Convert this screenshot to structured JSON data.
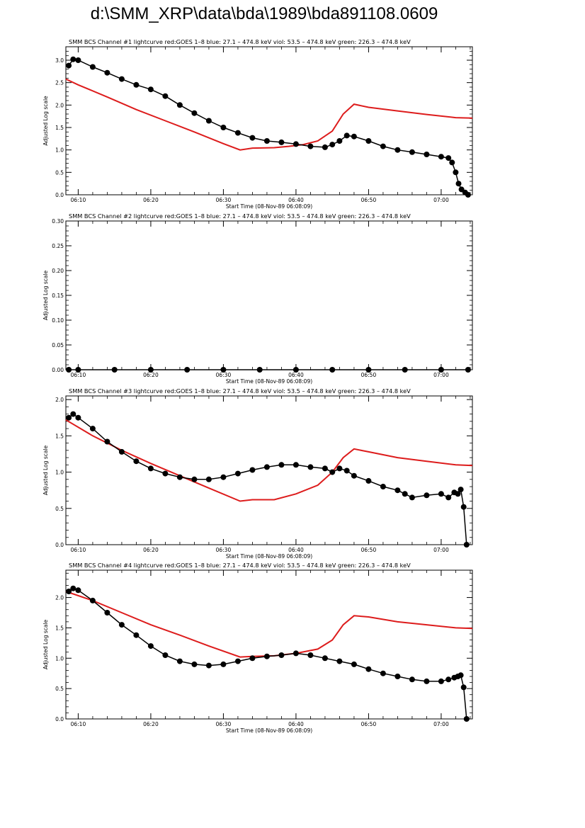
{
  "page": {
    "title": "d:\\SMM_XRP\\data\\bda\\1989\\bda891108.0609"
  },
  "colors": {
    "goes": "#dd1c1c",
    "bcs": "#000000",
    "axis": "#000000"
  },
  "chart_data": [
    {
      "type": "scatter",
      "title": "SMM BCS Channel #1 lightcurve  red:GOES 1–8  blue: 27.1 – 474.8 keV  viol: 53.5 – 474.8 keV  green: 226.3 – 474.8 keV",
      "xlabel": "Start Time (08-Nov-89 06:08:09)",
      "ylabel": "Adjusted Log scale",
      "x_unit": "minutes since 06:00",
      "xlim": [
        8.3,
        64.3
      ],
      "ylim": [
        0,
        3.3
      ],
      "yticks": [
        "0.0",
        "0.5",
        "1.0",
        "1.5",
        "2.0",
        "2.5",
        "3.0"
      ],
      "xticks": [
        "06:10",
        "06:20",
        "06:30",
        "06:40",
        "06:50",
        "07:00"
      ],
      "series": [
        {
          "name": "GOES 1–8",
          "style": "line",
          "color": "#dd1c1c",
          "x": [
            8.3,
            10,
            14,
            18,
            22,
            26,
            30,
            32.3,
            34,
            37,
            39,
            41,
            43,
            45,
            46.5,
            48,
            50,
            54,
            58,
            62,
            64.3
          ],
          "y": [
            2.58,
            2.45,
            2.18,
            1.9,
            1.65,
            1.4,
            1.14,
            1.0,
            1.04,
            1.05,
            1.08,
            1.12,
            1.2,
            1.42,
            1.8,
            2.02,
            1.95,
            1.87,
            1.79,
            1.72,
            1.71
          ]
        },
        {
          "name": "BCS",
          "style": "points-line",
          "color": "#000000",
          "x": [
            8.7,
            9.3,
            10,
            12,
            14,
            16,
            18,
            20,
            22,
            24,
            26,
            28,
            30,
            32,
            34,
            36,
            38,
            40,
            42,
            44,
            45,
            46,
            47,
            48,
            50,
            52,
            54,
            56,
            58,
            60,
            61,
            61.5,
            62,
            62.4,
            62.8,
            63.3,
            63.7
          ],
          "y": [
            2.88,
            3.02,
            3.0,
            2.85,
            2.72,
            2.58,
            2.45,
            2.35,
            2.2,
            2.0,
            1.82,
            1.65,
            1.5,
            1.38,
            1.27,
            1.2,
            1.17,
            1.13,
            1.08,
            1.06,
            1.12,
            1.2,
            1.32,
            1.3,
            1.2,
            1.08,
            1.0,
            0.95,
            0.9,
            0.85,
            0.82,
            0.72,
            0.5,
            0.25,
            0.12,
            0.05,
            0.0
          ]
        }
      ]
    },
    {
      "type": "scatter",
      "title": "SMM BCS Channel #2 lightcurve  red:GOES 1–8  blue: 27.1 – 474.8 keV  viol: 53.5 – 474.8 keV  green: 226.3 – 474.8 keV",
      "xlabel": "Start Time (08-Nov-89 06:08:09)",
      "ylabel": "Adjusted Log scale",
      "x_unit": "minutes since 06:00",
      "xlim": [
        8.3,
        64.3
      ],
      "ylim": [
        0,
        0.3
      ],
      "yticks": [
        "0.00",
        "0.05",
        "0.10",
        "0.15",
        "0.20",
        "0.25",
        "0.30"
      ],
      "xticks": [
        "06:10",
        "06:20",
        "06:30",
        "06:40",
        "06:50",
        "07:00"
      ],
      "series": [
        {
          "name": "BCS",
          "style": "points-line",
          "color": "#000000",
          "x": [
            8.7,
            10,
            15,
            20,
            25,
            30,
            35,
            40,
            45,
            50,
            55,
            60,
            63.7
          ],
          "y": [
            0,
            0,
            0,
            0,
            0,
            0,
            0,
            0,
            0,
            0,
            0,
            0,
            0
          ]
        }
      ]
    },
    {
      "type": "scatter",
      "title": "SMM BCS Channel #3 lightcurve  red:GOES 1–8  blue: 27.1 – 474.8 keV  viol: 53.5 – 474.8 keV  green: 226.3 – 474.8 keV",
      "xlabel": "Start Time (08-Nov-89 06:08:09)",
      "ylabel": "Adjusted Log scale",
      "x_unit": "minutes since 06:00",
      "xlim": [
        8.3,
        64.3
      ],
      "ylim": [
        0,
        2.05
      ],
      "yticks": [
        "0.0",
        "0.5",
        "1.0",
        "1.5",
        "2.0"
      ],
      "xticks": [
        "06:10",
        "06:20",
        "06:30",
        "06:40",
        "06:50",
        "07:00"
      ],
      "series": [
        {
          "name": "GOES 1–8",
          "style": "line",
          "color": "#dd1c1c",
          "x": [
            8.3,
            12,
            16,
            20,
            24,
            28,
            32.3,
            34,
            37,
            40,
            43,
            45,
            46.5,
            48,
            50,
            54,
            58,
            62,
            64.3
          ],
          "y": [
            1.72,
            1.5,
            1.3,
            1.12,
            0.95,
            0.78,
            0.6,
            0.62,
            0.62,
            0.7,
            0.82,
            1.0,
            1.2,
            1.32,
            1.28,
            1.2,
            1.15,
            1.1,
            1.09
          ]
        },
        {
          "name": "BCS",
          "style": "points-line",
          "color": "#000000",
          "x": [
            8.7,
            9.3,
            10,
            12,
            14,
            16,
            18,
            20,
            22,
            24,
            26,
            28,
            30,
            32,
            34,
            36,
            38,
            40,
            42,
            44,
            45,
            46,
            47,
            48,
            50,
            52,
            54,
            55,
            56,
            58,
            60,
            61,
            61.8,
            62.3,
            62.7,
            63.1,
            63.5
          ],
          "y": [
            1.75,
            1.8,
            1.75,
            1.6,
            1.42,
            1.28,
            1.15,
            1.05,
            0.98,
            0.93,
            0.9,
            0.9,
            0.93,
            0.98,
            1.03,
            1.07,
            1.1,
            1.1,
            1.07,
            1.05,
            1.0,
            1.05,
            1.02,
            0.95,
            0.88,
            0.8,
            0.75,
            0.7,
            0.65,
            0.68,
            0.7,
            0.65,
            0.72,
            0.7,
            0.76,
            0.52,
            0.0
          ]
        }
      ]
    },
    {
      "type": "scatter",
      "title": "SMM BCS Channel #4 lightcurve  red:GOES 1–8  blue: 27.1 – 474.8 keV  viol: 53.5 – 474.8 keV  green: 226.3 – 474.8 keV",
      "xlabel": "Start Time (08-Nov-89 06:08:09)",
      "ylabel": "Adjusted Log scale",
      "x_unit": "minutes since 06:00",
      "xlim": [
        8.3,
        64.3
      ],
      "ylim": [
        0,
        2.45
      ],
      "yticks": [
        "0.0",
        "0.5",
        "1.0",
        "1.5",
        "2.0"
      ],
      "xticks": [
        "06:10",
        "06:20",
        "06:30",
        "06:40",
        "06:50",
        "07:00"
      ],
      "series": [
        {
          "name": "GOES 1–8",
          "style": "line",
          "color": "#dd1c1c",
          "x": [
            8.3,
            12,
            16,
            20,
            24,
            28,
            32.3,
            34,
            37,
            40,
            43,
            45,
            46.5,
            48,
            50,
            54,
            58,
            62,
            64.3
          ],
          "y": [
            2.1,
            1.95,
            1.75,
            1.55,
            1.38,
            1.2,
            1.02,
            1.03,
            1.04,
            1.08,
            1.15,
            1.3,
            1.55,
            1.7,
            1.68,
            1.6,
            1.55,
            1.5,
            1.49
          ]
        },
        {
          "name": "BCS",
          "style": "points-line",
          "color": "#000000",
          "x": [
            8.7,
            9.3,
            10,
            12,
            14,
            16,
            18,
            20,
            22,
            24,
            26,
            28,
            30,
            32,
            34,
            36,
            38,
            40,
            42,
            44,
            46,
            48,
            50,
            52,
            54,
            56,
            58,
            60,
            61,
            61.8,
            62.3,
            62.7,
            63.1,
            63.5
          ],
          "y": [
            2.1,
            2.15,
            2.12,
            1.95,
            1.75,
            1.55,
            1.38,
            1.2,
            1.05,
            0.95,
            0.9,
            0.88,
            0.9,
            0.95,
            1.0,
            1.03,
            1.05,
            1.08,
            1.05,
            1.0,
            0.95,
            0.9,
            0.82,
            0.75,
            0.7,
            0.65,
            0.62,
            0.62,
            0.65,
            0.68,
            0.7,
            0.72,
            0.52,
            0.0
          ]
        }
      ]
    }
  ]
}
